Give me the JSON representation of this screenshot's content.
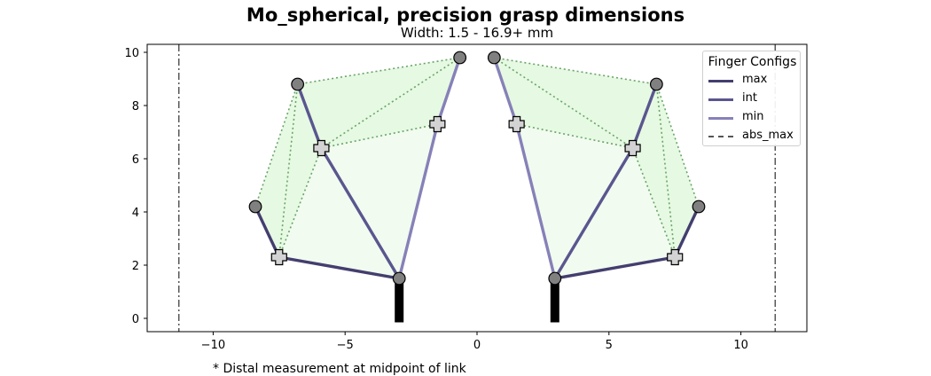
{
  "title": "Mo_spherical, precision grasp dimensions",
  "subtitle": "Width: 1.5 - 16.9+ mm",
  "footnote": "* Distal measurement at midpoint of link",
  "chart_data": {
    "type": "line",
    "xlim": [
      -12.5,
      12.5
    ],
    "ylim": [
      -0.5,
      10.3
    ],
    "x_ticks": [
      -10,
      -5,
      0,
      5,
      10
    ],
    "x_tick_labels": [
      "−10",
      "−5",
      "0",
      "5",
      "10"
    ],
    "y_ticks": [
      0,
      2,
      4,
      6,
      8,
      10
    ],
    "y_tick_labels": [
      "0",
      "2",
      "4",
      "6",
      "8",
      "10"
    ],
    "grid": false,
    "legend": {
      "title": "Finger Configs",
      "placement": "top-right",
      "entries": [
        {
          "label": "max",
          "color": "#433e6e",
          "style": "solid"
        },
        {
          "label": "int",
          "color": "#5a568f",
          "style": "solid"
        },
        {
          "label": "min",
          "color": "#8681b8",
          "style": "solid"
        },
        {
          "label": "abs_max",
          "color": "#555555",
          "style": "dashdot"
        }
      ]
    },
    "abs_max_x": [
      -11.3,
      11.3
    ],
    "bases": [
      [
        -2.95,
        1.5
      ],
      [
        2.95,
        1.5
      ]
    ],
    "base_stub_bottom": -0.15,
    "series": [
      {
        "name": "max",
        "color": "#433e6e",
        "left": [
          [
            -2.95,
            1.5
          ],
          [
            -7.5,
            2.3
          ],
          [
            -8.4,
            4.2
          ]
        ],
        "right": [
          [
            2.95,
            1.5
          ],
          [
            7.5,
            2.3
          ],
          [
            8.4,
            4.2
          ]
        ]
      },
      {
        "name": "int",
        "color": "#5a568f",
        "left": [
          [
            -2.95,
            1.5
          ],
          [
            -5.9,
            6.4
          ],
          [
            -6.8,
            8.8
          ]
        ],
        "right": [
          [
            2.95,
            1.5
          ],
          [
            5.9,
            6.4
          ],
          [
            6.8,
            8.8
          ]
        ]
      },
      {
        "name": "min",
        "color": "#8681b8",
        "left": [
          [
            -2.95,
            1.5
          ],
          [
            -1.5,
            7.3
          ],
          [
            -0.65,
            9.8
          ]
        ],
        "right": [
          [
            2.95,
            1.5
          ],
          [
            1.5,
            7.3
          ],
          [
            0.65,
            9.8
          ]
        ]
      }
    ],
    "colors": {
      "inner_fill": "#f1fbef",
      "outer_fill": "#e6f9e2",
      "dotted": "#6aa46a",
      "joint_fill": "#808080",
      "cross_fill": "#d3d3d3"
    }
  }
}
